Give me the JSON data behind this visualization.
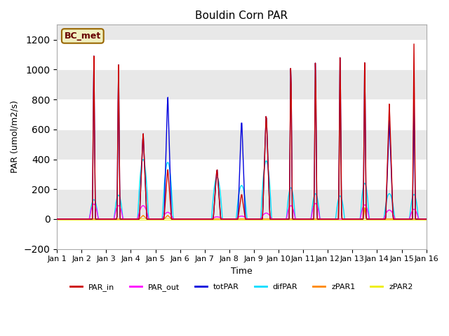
{
  "title": "Bouldin Corn PAR",
  "ylabel": "PAR (umol/m2/s)",
  "xlabel": "Time",
  "ylim": [
    -200,
    1300
  ],
  "yticks": [
    -200,
    0,
    200,
    400,
    600,
    800,
    1000,
    1200
  ],
  "xtick_labels": [
    "Jan 1",
    "Jan 2",
    "Jan 3",
    "Jan 4",
    "Jan 5",
    "Jan 6",
    "Jan 7",
    "Jan 8",
    "Jan 9",
    "Jan 10",
    "Jan 11",
    "Jan 12",
    "Jan 13",
    "Jan 14",
    "Jan 15",
    "Jan 16"
  ],
  "legend_label": "BC_met",
  "legend_bg": "#f0f0c0",
  "legend_border": "#996600",
  "series": {
    "PAR_in": {
      "color": "#cc0000",
      "lw": 1.0,
      "zorder": 5
    },
    "PAR_out": {
      "color": "#ff00ff",
      "lw": 1.0,
      "zorder": 4
    },
    "totPAR": {
      "color": "#0000dd",
      "lw": 1.0,
      "zorder": 3
    },
    "difPAR": {
      "color": "#00ddff",
      "lw": 1.0,
      "zorder": 2
    },
    "zPAR1": {
      "color": "#ff8800",
      "lw": 1.0,
      "zorder": 1
    },
    "zPAR2": {
      "color": "#eeee00",
      "lw": 2.0,
      "zorder": 0
    }
  },
  "day_data": {
    "1": {
      "PAR_in": 0,
      "totPAR": 0,
      "difPAR": 0,
      "PAR_out": 0,
      "zPAR1": 0,
      "narrow": true
    },
    "2": {
      "PAR_in": 1130,
      "totPAR": 1130,
      "difPAR": 130,
      "PAR_out": 100,
      "zPAR1": 0,
      "narrow": true
    },
    "3": {
      "PAR_in": 1095,
      "totPAR": 1095,
      "difPAR": 160,
      "PAR_out": 90,
      "zPAR1": 0,
      "narrow": true
    },
    "4": {
      "PAR_in": 590,
      "totPAR": 590,
      "difPAR": 400,
      "PAR_out": 90,
      "zPAR1": 25,
      "narrow": false
    },
    "5": {
      "PAR_in": 345,
      "totPAR": 850,
      "difPAR": 380,
      "PAR_out": 45,
      "zPAR1": 25,
      "narrow": false
    },
    "6": {
      "PAR_in": 0,
      "totPAR": 0,
      "difPAR": 0,
      "PAR_out": 0,
      "zPAR1": 0,
      "narrow": true
    },
    "7": {
      "PAR_in": 350,
      "totPAR": 350,
      "difPAR": 280,
      "PAR_out": 15,
      "zPAR1": 0,
      "narrow": false
    },
    "8": {
      "PAR_in": 175,
      "totPAR": 690,
      "difPAR": 225,
      "PAR_out": 20,
      "zPAR1": 0,
      "narrow": false
    },
    "9": {
      "PAR_in": 730,
      "totPAR": 730,
      "difPAR": 390,
      "PAR_out": 40,
      "zPAR1": 0,
      "narrow": false
    },
    "10": {
      "PAR_in": 1155,
      "totPAR": 1155,
      "difPAR": 210,
      "PAR_out": 90,
      "zPAR1": 0,
      "narrow": true
    },
    "11": {
      "PAR_in": 1165,
      "totPAR": 1165,
      "difPAR": 170,
      "PAR_out": 105,
      "zPAR1": 0,
      "narrow": true
    },
    "12": {
      "PAR_in": 1175,
      "totPAR": 1175,
      "difPAR": 155,
      "PAR_out": 0,
      "zPAR1": 940,
      "narrow": true
    },
    "13": {
      "PAR_in": 1110,
      "totPAR": 1110,
      "difPAR": 240,
      "PAR_out": 95,
      "zPAR1": 80,
      "narrow": true
    },
    "14": {
      "PAR_in": 780,
      "totPAR": 670,
      "difPAR": 170,
      "PAR_out": 60,
      "zPAR1": 0,
      "narrow": false
    },
    "15": {
      "PAR_in": 1185,
      "totPAR": 800,
      "difPAR": 165,
      "PAR_out": 65,
      "zPAR1": 0,
      "narrow": true
    }
  }
}
